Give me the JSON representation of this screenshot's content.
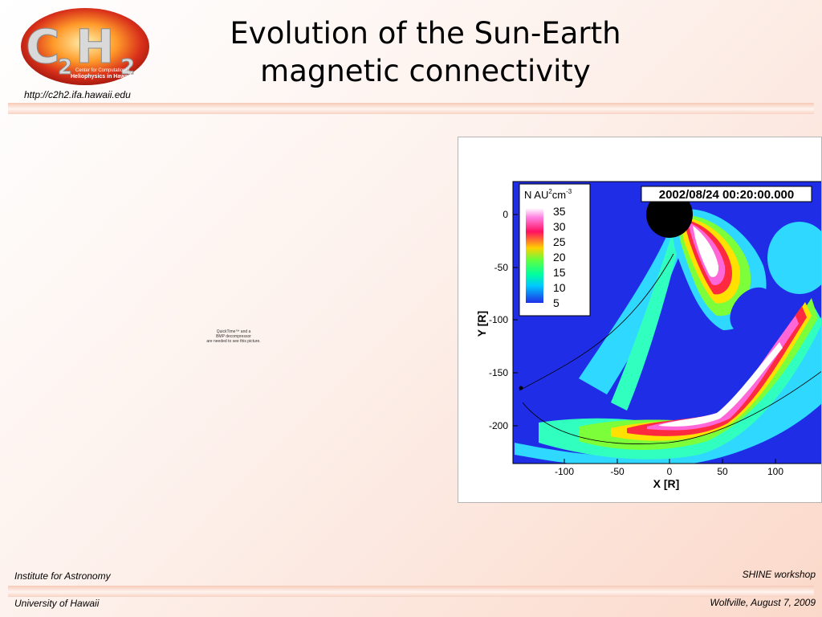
{
  "header": {
    "url": "http://c2h2.ifa.hawaii.edu",
    "title_line1": "Evolution of the Sun-Earth",
    "title_line2": "magnetic connectivity"
  },
  "logo": {
    "main_text": "C2H2",
    "tagline1": "Center for Computational",
    "tagline2": "Heliophysics in Hawaii"
  },
  "placeholder": {
    "line1": "QuickTime™ and a",
    "line2": "BMP decompressor",
    "line3": "are needed to see this picture."
  },
  "footer": {
    "left_top": "Institute for Astronomy",
    "left_bottom": "University of Hawaii",
    "right_top": "SHINE workshop",
    "right_bottom": "Wolfville, August 7, 2009"
  },
  "plot": {
    "timestamp": "2002/08/24 00:20:00.000",
    "legend_title_prefix": "N AU",
    "legend_sup1": "2",
    "legend_unit": "cm",
    "legend_sup2": "-3",
    "legend_values": [
      "35",
      "30",
      "25",
      "20",
      "15",
      "10",
      "5"
    ],
    "x_label": "X [R]",
    "y_label": "Y [R]",
    "x_ticks": [
      "-100",
      "-50",
      "0",
      "50",
      "100"
    ],
    "y_ticks": [
      "0",
      "-50",
      "-100",
      "-150",
      "-200"
    ],
    "colors": {
      "background": "#1f2ee6",
      "accent": "#ff1493"
    }
  }
}
